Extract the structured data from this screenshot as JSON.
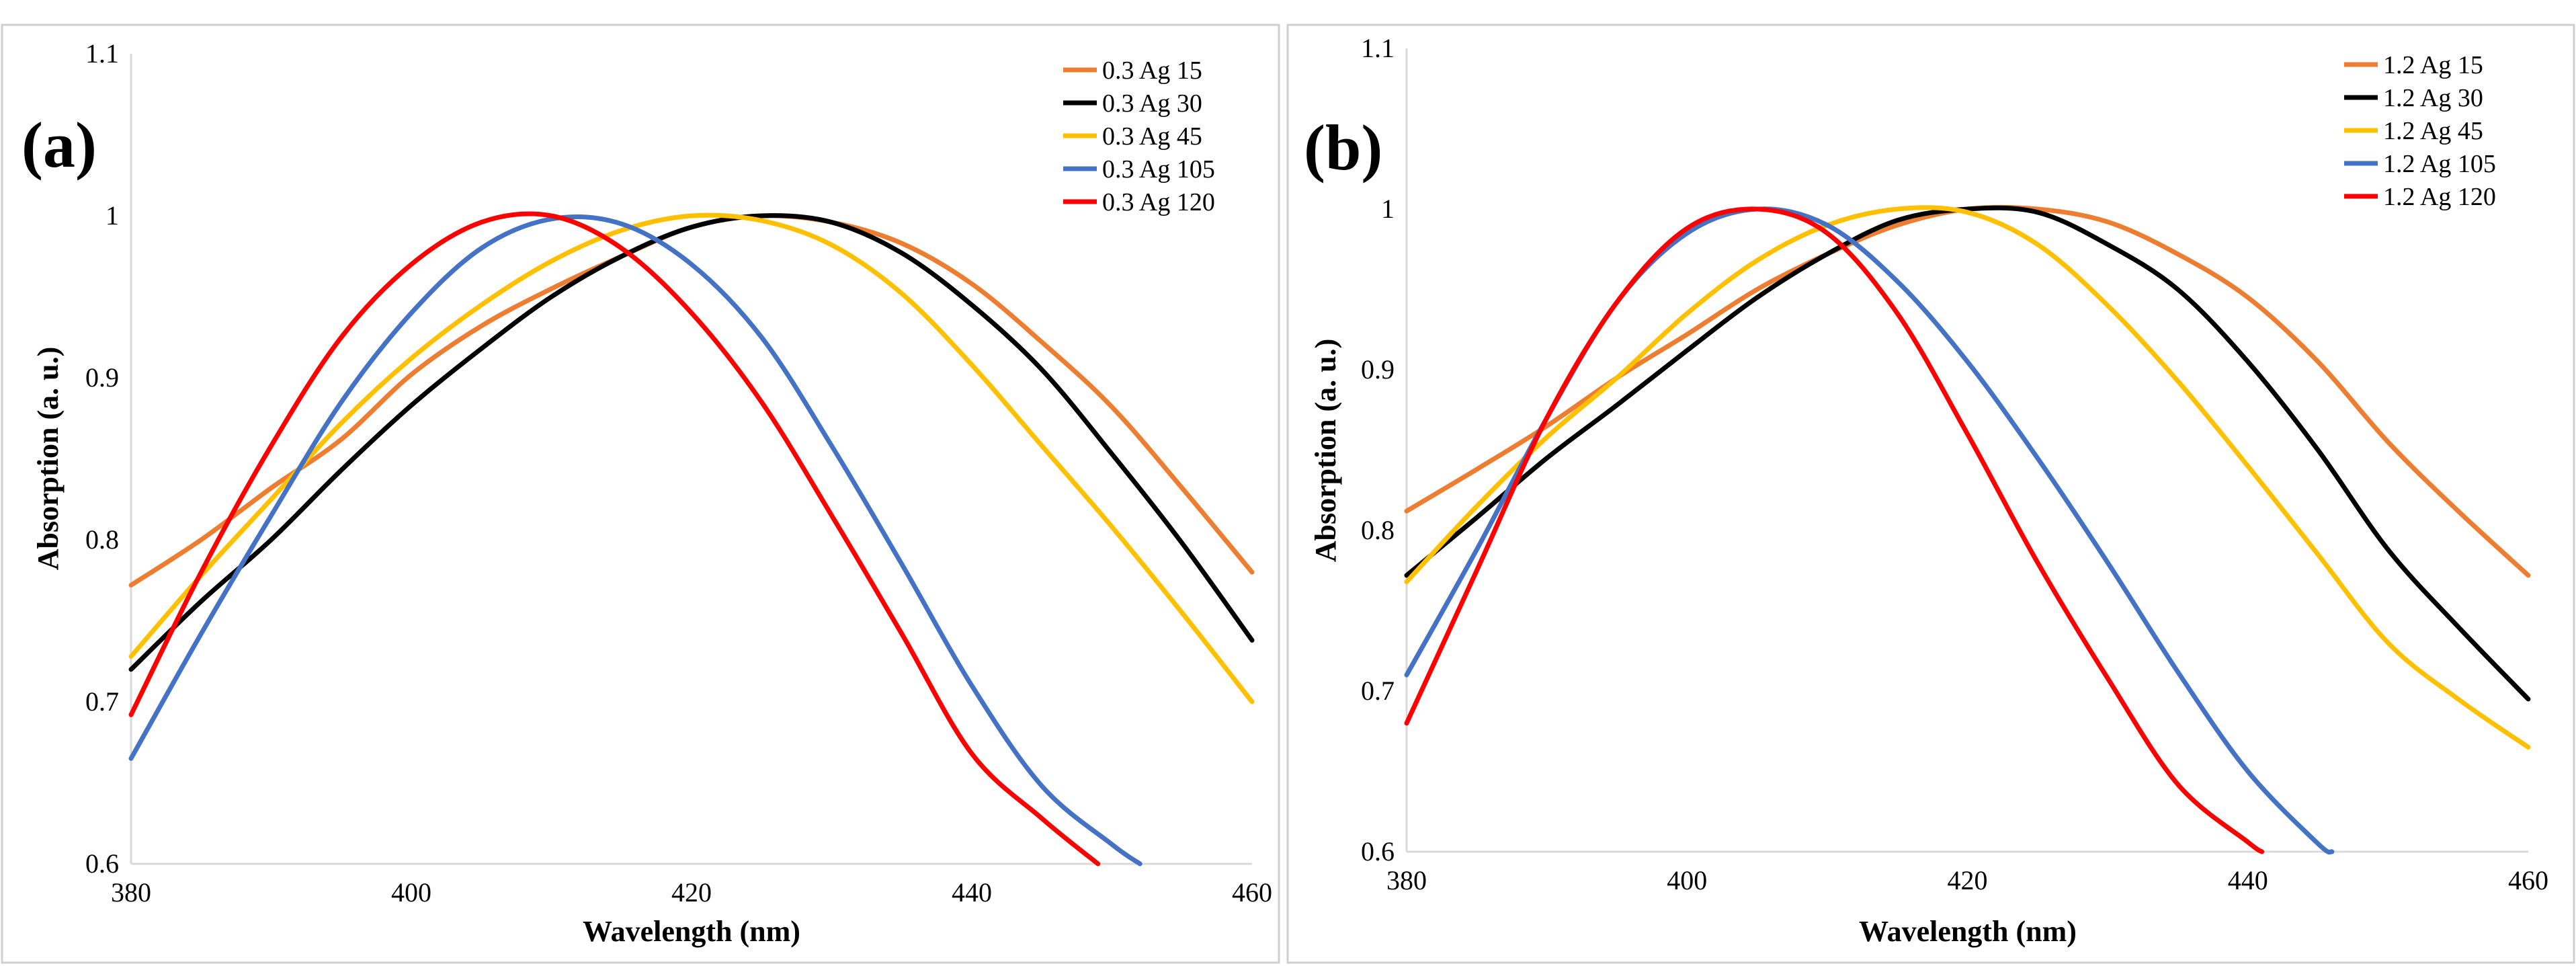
{
  "chart_data": [
    {
      "type": "line",
      "panel_label": "(a)",
      "xlabel": "Wavelength (nm)",
      "ylabel": "Absorption (a. u.)",
      "xlim": [
        380,
        460
      ],
      "ylim": [
        0.6,
        1.1
      ],
      "x_ticks": [
        380,
        400,
        420,
        440,
        460
      ],
      "y_ticks": [
        0.6,
        0.7,
        0.8,
        0.9,
        1,
        1.1
      ],
      "y_tick_labels": [
        "0.6",
        "0.7",
        "0.8",
        "0.9",
        "1",
        "1.1"
      ],
      "grid": false,
      "legend_position": "top-right",
      "series": [
        {
          "name": "0.3 Ag 15",
          "color": "#ED7D31",
          "x": [
            380,
            385,
            390,
            395,
            400,
            405,
            410,
            415,
            420,
            425,
            430,
            435,
            440,
            445,
            450,
            455,
            460
          ],
          "y": [
            0.772,
            0.8,
            0.832,
            0.862,
            0.902,
            0.932,
            0.955,
            0.975,
            0.993,
            1.0,
            0.996,
            0.983,
            0.958,
            0.922,
            0.882,
            0.832,
            0.78
          ]
        },
        {
          "name": "0.3 Ag 30",
          "color": "#000000",
          "x": [
            380,
            385,
            390,
            395,
            400,
            405,
            410,
            415,
            420,
            425,
            430,
            435,
            440,
            445,
            450,
            455,
            460
          ],
          "y": [
            0.72,
            0.762,
            0.8,
            0.843,
            0.883,
            0.918,
            0.95,
            0.975,
            0.993,
            1.0,
            0.996,
            0.977,
            0.945,
            0.905,
            0.853,
            0.798,
            0.738
          ]
        },
        {
          "name": "0.3 Ag 45",
          "color": "#FFC000",
          "x": [
            380,
            385,
            390,
            395,
            400,
            405,
            410,
            415,
            420,
            425,
            430,
            435,
            440,
            445,
            450,
            455,
            460
          ],
          "y": [
            0.728,
            0.778,
            0.825,
            0.872,
            0.912,
            0.945,
            0.972,
            0.991,
            1.0,
            0.997,
            0.982,
            0.952,
            0.908,
            0.858,
            0.808,
            0.755,
            0.7
          ]
        },
        {
          "name": "0.3 Ag 105",
          "color": "#4472C4",
          "x": [
            380,
            385,
            390,
            395,
            400,
            405,
            410,
            415,
            420,
            425,
            430,
            435,
            440,
            445,
            450,
            452
          ],
          "y": [
            0.665,
            0.742,
            0.815,
            0.885,
            0.94,
            0.98,
            0.998,
            0.995,
            0.97,
            0.925,
            0.858,
            0.785,
            0.71,
            0.648,
            0.612,
            0.6
          ]
        },
        {
          "name": "0.3 Ag 120",
          "color": "#FF0000",
          "x": [
            380,
            385,
            390,
            395,
            400,
            405,
            410,
            415,
            420,
            425,
            430,
            435,
            440,
            445,
            449
          ],
          "y": [
            0.692,
            0.78,
            0.858,
            0.925,
            0.97,
            0.996,
            1.0,
            0.98,
            0.94,
            0.885,
            0.815,
            0.742,
            0.668,
            0.628,
            0.6
          ]
        }
      ]
    },
    {
      "type": "line",
      "panel_label": "(b)",
      "xlabel": "Wavelength (nm)",
      "ylabel": "Absorption (a. u.)",
      "xlim": [
        380,
        460
      ],
      "ylim": [
        0.6,
        1.1
      ],
      "x_ticks": [
        380,
        400,
        420,
        440,
        460
      ],
      "y_ticks": [
        0.6,
        0.7,
        0.8,
        0.9,
        1,
        1.1
      ],
      "y_tick_labels": [
        "0.6",
        "0.7",
        "0.8",
        "0.9",
        "1",
        "1.1"
      ],
      "grid": false,
      "legend_position": "top-right",
      "series": [
        {
          "name": "1.2 Ag 15",
          "color": "#ED7D31",
          "x": [
            380,
            385,
            390,
            395,
            400,
            405,
            410,
            415,
            420,
            425,
            430,
            435,
            440,
            445,
            450,
            455,
            460
          ],
          "y": [
            0.812,
            0.838,
            0.865,
            0.895,
            0.922,
            0.95,
            0.972,
            0.99,
            1.0,
            1.0,
            0.992,
            0.972,
            0.945,
            0.905,
            0.855,
            0.812,
            0.772
          ]
        },
        {
          "name": "1.2 Ag 30",
          "color": "#000000",
          "x": [
            380,
            385,
            390,
            395,
            400,
            405,
            410,
            415,
            420,
            425,
            430,
            435,
            440,
            445,
            450,
            455,
            460
          ],
          "y": [
            0.772,
            0.808,
            0.845,
            0.878,
            0.912,
            0.945,
            0.972,
            0.993,
            1.0,
            0.998,
            0.978,
            0.95,
            0.905,
            0.85,
            0.788,
            0.74,
            0.695
          ]
        },
        {
          "name": "1.2 Ag 45",
          "color": "#FFC000",
          "x": [
            380,
            385,
            390,
            395,
            400,
            405,
            410,
            415,
            420,
            425,
            430,
            435,
            440,
            445,
            450,
            455,
            460
          ],
          "y": [
            0.768,
            0.815,
            0.858,
            0.895,
            0.935,
            0.968,
            0.99,
            1.0,
            0.998,
            0.978,
            0.94,
            0.893,
            0.84,
            0.785,
            0.73,
            0.695,
            0.665
          ]
        },
        {
          "name": "1.2 Ag 105",
          "color": "#4472C4",
          "x": [
            380,
            385,
            390,
            395,
            400,
            405,
            410,
            415,
            420,
            425,
            430,
            435,
            440,
            445,
            446
          ],
          "y": [
            0.71,
            0.788,
            0.87,
            0.942,
            0.985,
            1.0,
            0.99,
            0.955,
            0.905,
            0.845,
            0.78,
            0.712,
            0.65,
            0.605,
            0.6
          ]
        },
        {
          "name": "1.2 Ag 120",
          "color": "#FF0000",
          "x": [
            380,
            385,
            390,
            395,
            400,
            405,
            410,
            415,
            420,
            425,
            430,
            435,
            440,
            441
          ],
          "y": [
            0.68,
            0.775,
            0.87,
            0.942,
            0.988,
            1.0,
            0.985,
            0.935,
            0.86,
            0.78,
            0.708,
            0.642,
            0.606,
            0.6
          ]
        }
      ]
    }
  ]
}
